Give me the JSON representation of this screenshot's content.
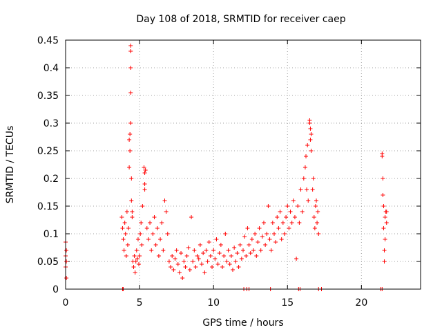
{
  "chart_data": {
    "type": "scatter",
    "title": "Day 108 of 2018, SRMTID for receiver caep",
    "xlabel": "GPS time / hours",
    "ylabel": "SRMTID / TECUs",
    "xlim": [
      0,
      24
    ],
    "ylim": [
      0,
      0.45
    ],
    "xticks": [
      0,
      5,
      10,
      15,
      20
    ],
    "xtick_labels": [
      "0",
      "5",
      "10",
      "15",
      "20"
    ],
    "yticks": [
      0,
      0.05,
      0.1,
      0.15,
      0.2,
      0.25,
      0.3,
      0.35,
      0.4,
      0.45
    ],
    "ytick_labels": [
      "0",
      "0.05",
      "0.1",
      "0.15",
      "0.2",
      "0.25",
      "0.3",
      "0.35",
      "0.4",
      "0.45"
    ],
    "grid": true,
    "marker": "+",
    "series": [
      {
        "name": "SRMTID",
        "color": "#ff0000",
        "points": [
          [
            0.0,
            0.085
          ],
          [
            0.0,
            0.06
          ],
          [
            0.05,
            0.05
          ],
          [
            0.05,
            0.02
          ],
          [
            0.05,
            0.07
          ],
          [
            0.0,
            0.04
          ],
          [
            3.8,
            0.13
          ],
          [
            3.85,
            0.11
          ],
          [
            3.9,
            0.09
          ],
          [
            3.95,
            0.07
          ],
          [
            4.0,
            0.12
          ],
          [
            4.05,
            0.1
          ],
          [
            4.1,
            0.06
          ],
          [
            4.15,
            0.14
          ],
          [
            4.2,
            0.08
          ],
          [
            4.25,
            0.11
          ],
          [
            4.3,
            0.22
          ],
          [
            4.3,
            0.27
          ],
          [
            4.35,
            0.28
          ],
          [
            4.35,
            0.25
          ],
          [
            4.4,
            0.3
          ],
          [
            4.4,
            0.44
          ],
          [
            4.4,
            0.43
          ],
          [
            4.4,
            0.4
          ],
          [
            4.4,
            0.355
          ],
          [
            4.45,
            0.2
          ],
          [
            4.45,
            0.16
          ],
          [
            4.5,
            0.14
          ],
          [
            4.5,
            0.13
          ],
          [
            4.55,
            0.05
          ],
          [
            4.6,
            0.04
          ],
          [
            4.65,
            0.06
          ],
          [
            4.7,
            0.03
          ],
          [
            4.75,
            0.05
          ],
          [
            4.8,
            0.07
          ],
          [
            4.85,
            0.055
          ],
          [
            4.9,
            0.09
          ],
          [
            4.95,
            0.045
          ],
          [
            5.0,
            0.06
          ],
          [
            5.05,
            0.1
          ],
          [
            5.1,
            0.12
          ],
          [
            5.15,
            0.08
          ],
          [
            5.2,
            0.15
          ],
          [
            5.3,
            0.22
          ],
          [
            5.35,
            0.21
          ],
          [
            5.35,
            0.19
          ],
          [
            5.4,
            0.215
          ],
          [
            5.35,
            0.18
          ],
          [
            5.5,
            0.11
          ],
          [
            5.6,
            0.09
          ],
          [
            5.7,
            0.12
          ],
          [
            5.8,
            0.07
          ],
          [
            5.9,
            0.1
          ],
          [
            6.0,
            0.13
          ],
          [
            6.1,
            0.08
          ],
          [
            6.2,
            0.11
          ],
          [
            6.3,
            0.06
          ],
          [
            6.4,
            0.09
          ],
          [
            6.5,
            0.12
          ],
          [
            6.6,
            0.07
          ],
          [
            6.7,
            0.16
          ],
          [
            6.8,
            0.14
          ],
          [
            6.9,
            0.1
          ],
          [
            7.0,
            0.05
          ],
          [
            7.1,
            0.04
          ],
          [
            7.2,
            0.06
          ],
          [
            7.3,
            0.035
          ],
          [
            7.4,
            0.055
          ],
          [
            7.5,
            0.07
          ],
          [
            7.6,
            0.045
          ],
          [
            7.7,
            0.03
          ],
          [
            7.8,
            0.065
          ],
          [
            7.9,
            0.02
          ],
          [
            8.0,
            0.05
          ],
          [
            8.1,
            0.04
          ],
          [
            8.2,
            0.06
          ],
          [
            8.3,
            0.075
          ],
          [
            8.4,
            0.035
          ],
          [
            8.5,
            0.13
          ],
          [
            8.6,
            0.05
          ],
          [
            8.7,
            0.07
          ],
          [
            8.8,
            0.04
          ],
          [
            8.9,
            0.06
          ],
          [
            9.0,
            0.055
          ],
          [
            9.1,
            0.08
          ],
          [
            9.2,
            0.045
          ],
          [
            9.3,
            0.065
          ],
          [
            9.4,
            0.03
          ],
          [
            9.5,
            0.07
          ],
          [
            9.6,
            0.05
          ],
          [
            9.7,
            0.085
          ],
          [
            9.8,
            0.06
          ],
          [
            9.9,
            0.04
          ],
          [
            10.0,
            0.07
          ],
          [
            10.1,
            0.055
          ],
          [
            10.2,
            0.09
          ],
          [
            10.3,
            0.045
          ],
          [
            10.4,
            0.065
          ],
          [
            10.5,
            0.08
          ],
          [
            10.6,
            0.04
          ],
          [
            10.7,
            0.06
          ],
          [
            10.8,
            0.1
          ],
          [
            10.9,
            0.05
          ],
          [
            11.0,
            0.07
          ],
          [
            11.1,
            0.045
          ],
          [
            11.2,
            0.06
          ],
          [
            11.3,
            0.035
          ],
          [
            11.4,
            0.075
          ],
          [
            11.5,
            0.05
          ],
          [
            11.6,
            0.065
          ],
          [
            11.7,
            0.04
          ],
          [
            11.8,
            0.08
          ],
          [
            11.9,
            0.055
          ],
          [
            12.0,
            0.07
          ],
          [
            12.1,
            0.095
          ],
          [
            12.2,
            0.06
          ],
          [
            12.3,
            0.11
          ],
          [
            12.4,
            0.08
          ],
          [
            12.5,
            0.065
          ],
          [
            12.6,
            0.09
          ],
          [
            12.7,
            0.07
          ],
          [
            12.8,
            0.1
          ],
          [
            12.9,
            0.06
          ],
          [
            13.0,
            0.085
          ],
          [
            13.1,
            0.11
          ],
          [
            13.2,
            0.07
          ],
          [
            13.3,
            0.095
          ],
          [
            13.4,
            0.12
          ],
          [
            13.5,
            0.08
          ],
          [
            13.6,
            0.1
          ],
          [
            13.7,
            0.15
          ],
          [
            13.8,
            0.09
          ],
          [
            13.9,
            0.07
          ],
          [
            14.0,
            0.12
          ],
          [
            14.1,
            0.1
          ],
          [
            14.2,
            0.085
          ],
          [
            14.3,
            0.13
          ],
          [
            14.4,
            0.11
          ],
          [
            14.5,
            0.14
          ],
          [
            14.6,
            0.09
          ],
          [
            14.7,
            0.12
          ],
          [
            14.8,
            0.1
          ],
          [
            14.9,
            0.13
          ],
          [
            15.0,
            0.15
          ],
          [
            15.1,
            0.11
          ],
          [
            15.2,
            0.14
          ],
          [
            15.3,
            0.12
          ],
          [
            15.4,
            0.16
          ],
          [
            15.5,
            0.13
          ],
          [
            15.6,
            0.055
          ],
          [
            15.7,
            0.15
          ],
          [
            15.8,
            0.12
          ],
          [
            15.9,
            0.18
          ],
          [
            16.0,
            0.14
          ],
          [
            16.1,
            0.2
          ],
          [
            16.2,
            0.22
          ],
          [
            16.25,
            0.24
          ],
          [
            16.3,
            0.18
          ],
          [
            16.35,
            0.26
          ],
          [
            16.4,
            0.16
          ],
          [
            16.5,
            0.3
          ],
          [
            16.5,
            0.305
          ],
          [
            16.55,
            0.29
          ],
          [
            16.6,
            0.28
          ],
          [
            16.55,
            0.27
          ],
          [
            16.6,
            0.25
          ],
          [
            16.7,
            0.18
          ],
          [
            16.75,
            0.2
          ],
          [
            16.8,
            0.13
          ],
          [
            16.85,
            0.11
          ],
          [
            16.9,
            0.15
          ],
          [
            16.95,
            0.16
          ],
          [
            17.0,
            0.12
          ],
          [
            17.05,
            0.14
          ],
          [
            17.1,
            0.1
          ],
          [
            21.4,
            0.245
          ],
          [
            21.4,
            0.24
          ],
          [
            21.45,
            0.2
          ],
          [
            21.45,
            0.17
          ],
          [
            21.5,
            0.15
          ],
          [
            21.5,
            0.11
          ],
          [
            21.55,
            0.07
          ],
          [
            21.55,
            0.05
          ],
          [
            21.6,
            0.13
          ],
          [
            21.6,
            0.09
          ],
          [
            21.65,
            0.14
          ],
          [
            21.7,
            0.12
          ],
          [
            21.7,
            0.14
          ],
          [
            3.85,
            0.0
          ],
          [
            3.9,
            0.0
          ],
          [
            12.05,
            0.0
          ],
          [
            12.25,
            0.0
          ],
          [
            12.4,
            0.0
          ],
          [
            13.85,
            0.0
          ],
          [
            15.75,
            0.0
          ],
          [
            15.85,
            0.0
          ],
          [
            17.1,
            0.0
          ],
          [
            17.3,
            0.0
          ],
          [
            21.3,
            0.0
          ],
          [
            21.4,
            0.0
          ]
        ]
      }
    ]
  }
}
